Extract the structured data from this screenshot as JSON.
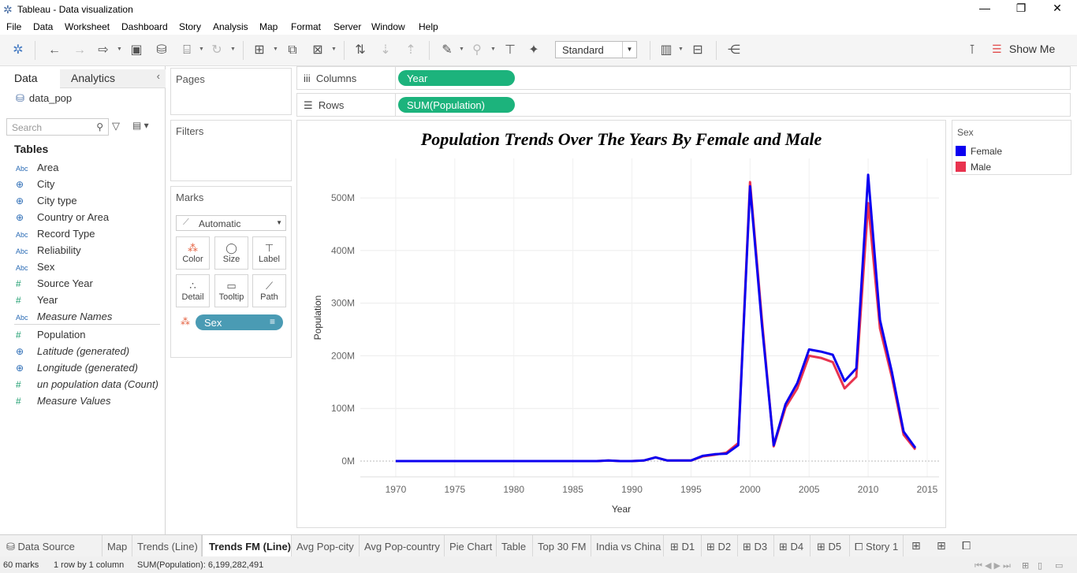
{
  "window": {
    "title": "Tableau - Data visualization",
    "min": "—",
    "max": "❐",
    "close": "✕"
  },
  "menu": [
    "File",
    "Data",
    "Worksheet",
    "Dashboard",
    "Story",
    "Analysis",
    "Map",
    "Format",
    "Server",
    "Window",
    "Help"
  ],
  "toolbar": {
    "fit_select": "Standard",
    "show_me": "Show Me"
  },
  "left_pane": {
    "tab_data": "Data",
    "tab_analytics": "Analytics",
    "datasource": "data_pop",
    "search_placeholder": "Search",
    "tables_heading": "Tables",
    "fields": [
      {
        "type": "Abc",
        "name": "Area"
      },
      {
        "type": "geo",
        "name": "City"
      },
      {
        "type": "geo",
        "name": "City type"
      },
      {
        "type": "geo",
        "name": "Country or Area"
      },
      {
        "type": "Abc",
        "name": "Record Type"
      },
      {
        "type": "Abc",
        "name": "Reliability"
      },
      {
        "type": "Abc",
        "name": "Sex"
      },
      {
        "type": "#",
        "name": "Source Year"
      },
      {
        "type": "#",
        "name": "Year"
      },
      {
        "type": "Abc",
        "name": "Measure Names"
      },
      {
        "type": "#",
        "name": "Population"
      },
      {
        "type": "geo",
        "name": "Latitude (generated)"
      },
      {
        "type": "geo",
        "name": "Longitude (generated)"
      },
      {
        "type": "#",
        "name": "un population data (Count)"
      },
      {
        "type": "#",
        "name": "Measure Values"
      }
    ]
  },
  "cards": {
    "pages": "Pages",
    "filters": "Filters",
    "marks": "Marks",
    "mark_type": "Automatic",
    "mark_buttons": [
      "Color",
      "Size",
      "Label",
      "Detail",
      "Tooltip",
      "Path"
    ],
    "color_pill": "Sex"
  },
  "shelves": {
    "columns_label": "Columns",
    "columns_pill": "Year",
    "rows_label": "Rows",
    "rows_pill": "SUM(Population)"
  },
  "legend": {
    "title": "Sex",
    "items": [
      {
        "name": "Female",
        "color": "#0b00f0"
      },
      {
        "name": "Male",
        "color": "#e8334f"
      }
    ]
  },
  "chart_data": {
    "type": "line",
    "title": "Population Trends Over The Years By Female and Male",
    "xlabel": "Year",
    "ylabel": "Population",
    "xlim": [
      1967,
      2016
    ],
    "ylim": [
      -30,
      575
    ],
    "x_ticks": [
      1970,
      1975,
      1980,
      1985,
      1990,
      1995,
      2000,
      2005,
      2010,
      2015
    ],
    "y_ticks": [
      0,
      100,
      200,
      300,
      400,
      500
    ],
    "y_tick_labels": [
      "0M",
      "100M",
      "200M",
      "300M",
      "400M",
      "500M"
    ],
    "unit": "M",
    "x": [
      1970,
      1971,
      1972,
      1973,
      1974,
      1975,
      1976,
      1977,
      1978,
      1979,
      1980,
      1981,
      1982,
      1983,
      1984,
      1985,
      1986,
      1987,
      1988,
      1989,
      1990,
      1991,
      1992,
      1993,
      1994,
      1995,
      1996,
      1997,
      1998,
      1999,
      2000,
      2001,
      2002,
      2003,
      2004,
      2005,
      2006,
      2007,
      2008,
      2009,
      2010,
      2011,
      2012,
      2013,
      2014
    ],
    "series": [
      {
        "name": "Male",
        "color": "#e8334f",
        "values": [
          0,
          0,
          0,
          0,
          0,
          0,
          0,
          0,
          0,
          0,
          0,
          0,
          0,
          0,
          0,
          0,
          0,
          0,
          1,
          0,
          0,
          1,
          7,
          1,
          1,
          1,
          9,
          12,
          16,
          34,
          530,
          270,
          28,
          102,
          138,
          200,
          196,
          188,
          138,
          160,
          490,
          252,
          160,
          50,
          22
        ]
      },
      {
        "name": "Female",
        "color": "#0b00f0",
        "values": [
          0,
          0,
          0,
          0,
          0,
          0,
          0,
          0,
          0,
          0,
          0,
          0,
          0,
          0,
          0,
          0,
          0,
          0,
          1,
          0,
          0,
          1,
          7,
          1,
          1,
          1,
          10,
          13,
          14,
          30,
          522,
          260,
          30,
          108,
          148,
          212,
          208,
          202,
          152,
          176,
          544,
          268,
          170,
          56,
          25
        ]
      }
    ],
    "grid": true,
    "legend": "right"
  },
  "sheet_tabs": [
    "Data Source",
    "Map",
    "Trends (Line)",
    "Trends FM (Line)",
    "Avg Pop-city",
    "Avg Pop-country",
    "Pie Chart",
    "Table",
    "Top 30 FM",
    "India vs China",
    "D1",
    "D2",
    "D3",
    "D4",
    "D5",
    "Story 1"
  ],
  "active_tab": "Trends FM (Line)",
  "status": {
    "marks": "60 marks",
    "dims": "1 row by 1 column",
    "sum": "SUM(Population): 6,199,282,491"
  }
}
